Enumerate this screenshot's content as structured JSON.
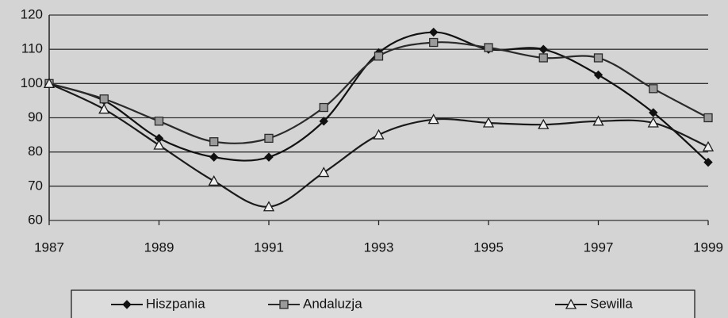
{
  "chart_data": {
    "type": "line",
    "x": [
      1987,
      1988,
      1989,
      1990,
      1991,
      1992,
      1993,
      1994,
      1995,
      1996,
      1997,
      1998,
      1999
    ],
    "series": [
      {
        "name": "Hiszpania",
        "color": "#111111",
        "marker": "diamond",
        "values": [
          100,
          95,
          84,
          78.5,
          78.5,
          89,
          109,
          115,
          110,
          110,
          102.5,
          91.5,
          77
        ]
      },
      {
        "name": "Andaluzja",
        "color": "#2a2a2a",
        "marker": "square",
        "values": [
          100,
          95.5,
          89,
          83,
          84,
          93,
          108,
          112,
          110.5,
          107.5,
          107.5,
          98.5,
          90
        ]
      },
      {
        "name": "Sewilla",
        "color": "#1a1a1a",
        "marker": "triangle",
        "values": [
          100,
          92.5,
          82,
          71.5,
          64,
          74,
          85,
          89.5,
          88.5,
          88,
          89,
          88.5,
          81.5
        ]
      }
    ],
    "xlim": [
      1987,
      1999
    ],
    "xticks": [
      1987,
      1989,
      1991,
      1993,
      1995,
      1997,
      1999
    ],
    "ylim": [
      60,
      120
    ],
    "yticks": [
      60,
      70,
      80,
      90,
      100,
      110,
      120
    ],
    "grid": true,
    "legend": "bottom"
  }
}
